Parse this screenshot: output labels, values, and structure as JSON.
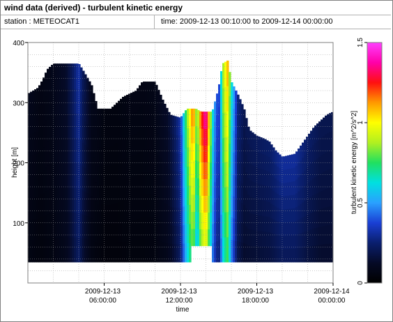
{
  "header": {
    "title": "wind data (derived) - turbulent kinetic energy",
    "station": "station : METEOCAT1",
    "time_range": "time: 2009-12-13 00:10:00 to 2009-12-14 00:00:00"
  },
  "colors": {
    "palette": [
      "#000000",
      "#050a26",
      "#0a1f6e",
      "#1a3fd4",
      "#2aa0ff",
      "#00e0e0",
      "#20e060",
      "#b0f020",
      "#ffff00",
      "#ff9900",
      "#ff1010",
      "#ff00aa",
      "#ff40ff"
    ],
    "background": "#ffffff",
    "grid": "#888888"
  },
  "chart_data": {
    "type": "heatmap",
    "title": "",
    "xlabel": "time",
    "ylabel": "height [m]",
    "colorbar_label": "turbulent kinetic energy [m^2/s^2]",
    "x_ticks": [
      {
        "hour": 6,
        "line1": "2009-12-13",
        "line2": "06:00:00"
      },
      {
        "hour": 12,
        "line1": "2009-12-13",
        "line2": "12:00:00"
      },
      {
        "hour": 18,
        "line1": "2009-12-13",
        "line2": "18:00:00"
      },
      {
        "hour": 24,
        "line1": "2009-12-14",
        "line2": "00:00:00"
      }
    ],
    "y_ticks": [
      100,
      200,
      300,
      400
    ],
    "xlim_hours": [
      0,
      24
    ],
    "ylim": [
      0,
      400
    ],
    "colorbar_ticks": [
      0,
      0.5,
      1,
      1.5
    ],
    "clim": [
      0,
      1.5
    ],
    "grid": true,
    "data_bottom_height": 35,
    "data_top_height_by_hour": [
      [
        0,
        315
      ],
      [
        0.8,
        325
      ],
      [
        1.2,
        340
      ],
      [
        1.5,
        355
      ],
      [
        2.0,
        365
      ],
      [
        4.0,
        365
      ],
      [
        4.3,
        355
      ],
      [
        5.0,
        330
      ],
      [
        5.5,
        290
      ],
      [
        6.5,
        290
      ],
      [
        7.0,
        300
      ],
      [
        7.5,
        310
      ],
      [
        8.5,
        320
      ],
      [
        9.0,
        335
      ],
      [
        10.0,
        335
      ],
      [
        10.3,
        320
      ],
      [
        10.6,
        305
      ],
      [
        11.2,
        280
      ],
      [
        12.0,
        275
      ],
      [
        12.5,
        290
      ],
      [
        13.2,
        290
      ],
      [
        13.6,
        285
      ],
      [
        14.5,
        285
      ],
      [
        15.0,
        325
      ],
      [
        15.3,
        365
      ],
      [
        15.7,
        370
      ],
      [
        16.0,
        335
      ],
      [
        16.6,
        310
      ],
      [
        17.0,
        290
      ],
      [
        17.4,
        255
      ],
      [
        18.0,
        245
      ],
      [
        18.6,
        240
      ],
      [
        19.0,
        235
      ],
      [
        19.5,
        220
      ],
      [
        20.0,
        210
      ],
      [
        21.0,
        215
      ],
      [
        21.5,
        230
      ],
      [
        22.0,
        245
      ],
      [
        22.5,
        260
      ],
      [
        23.0,
        270
      ],
      [
        23.5,
        280
      ],
      [
        24.0,
        285
      ]
    ],
    "gap_hours": [
      12.8,
      14.5
    ],
    "gap_top_height": 62,
    "tke_by_hour": [
      [
        0,
        0.08
      ],
      [
        1.0,
        0.06
      ],
      [
        2.0,
        0.08
      ],
      [
        3.0,
        0.12
      ],
      [
        3.5,
        0.2
      ],
      [
        4.0,
        0.3
      ],
      [
        4.3,
        0.2
      ],
      [
        5.0,
        0.08
      ],
      [
        6.0,
        0.05
      ],
      [
        7.0,
        0.05
      ],
      [
        8.0,
        0.06
      ],
      [
        9.0,
        0.06
      ],
      [
        10.0,
        0.07
      ],
      [
        11.0,
        0.12
      ],
      [
        11.5,
        0.2
      ],
      [
        12.0,
        0.3
      ],
      [
        12.3,
        0.6
      ],
      [
        12.7,
        0.9
      ],
      [
        13.0,
        1.1
      ],
      [
        13.3,
        0.7
      ],
      [
        13.6,
        1.1
      ],
      [
        14.0,
        1.3
      ],
      [
        14.3,
        0.9
      ],
      [
        14.6,
        0.5
      ],
      [
        15.0,
        0.3
      ],
      [
        15.4,
        0.85
      ],
      [
        15.7,
        1.0
      ],
      [
        16.0,
        0.6
      ],
      [
        16.5,
        0.25
      ],
      [
        17.0,
        0.18
      ],
      [
        18.0,
        0.2
      ],
      [
        19.0,
        0.22
      ],
      [
        20.0,
        0.28
      ],
      [
        21.0,
        0.28
      ],
      [
        22.0,
        0.22
      ],
      [
        23.0,
        0.18
      ],
      [
        24.0,
        0.18
      ]
    ]
  }
}
